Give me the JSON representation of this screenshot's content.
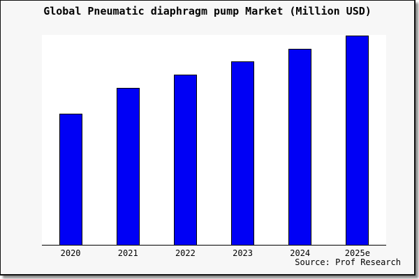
{
  "title": "Global Pneumatic diaphragm pump Market (Million USD)",
  "source_note": "Source: Prof Research",
  "colors": {
    "bar_fill": "#0000f5",
    "bar_border": "#000000",
    "card_background": "#f7f7f7",
    "plot_background": "#ffffff",
    "axis": "#000000",
    "text": "#000000"
  },
  "chart_data": {
    "type": "bar",
    "title": "Global Pneumatic diaphragm pump Market (Million USD)",
    "categories": [
      "2020",
      "2021",
      "2022",
      "2023",
      "2024",
      "2025e"
    ],
    "values": [
      62.5,
      74.7,
      81.1,
      87.3,
      93.2,
      99.7
    ],
    "values_unit": "relative bar height (% of plot height); chart shows no numeric y-axis labels",
    "xlabel": "",
    "ylabel": "",
    "ylim": [
      0,
      100
    ],
    "grid": false,
    "legend": null,
    "annotations": [
      "Source: Prof Research"
    ]
  }
}
